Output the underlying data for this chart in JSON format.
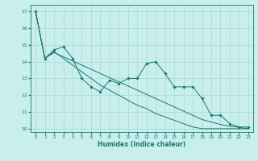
{
  "xlabel": "Humidex (Indice chaleur)",
  "ylabel": "",
  "bg_color": "#c8eeee",
  "grid_color": "#a8d8d8",
  "line_color": "#1a7a6a",
  "marker_color": "#1a7a6a",
  "xlim": [
    -0.5,
    23.5
  ],
  "ylim": [
    9.8,
    17.4
  ],
  "xticks": [
    0,
    1,
    2,
    3,
    4,
    5,
    6,
    7,
    8,
    9,
    10,
    11,
    12,
    13,
    14,
    15,
    16,
    17,
    18,
    19,
    20,
    21,
    22,
    23
  ],
  "yticks": [
    10,
    11,
    12,
    13,
    14,
    15,
    16,
    17
  ],
  "series1": [
    17.0,
    14.2,
    14.7,
    14.9,
    14.2,
    13.0,
    12.5,
    12.2,
    12.9,
    12.7,
    13.0,
    13.0,
    13.9,
    14.0,
    13.3,
    12.5,
    12.5,
    12.5,
    11.8,
    10.8,
    10.8,
    10.3,
    10.1,
    10.1
  ],
  "series2": [
    17.0,
    14.2,
    14.6,
    14.2,
    13.8,
    13.4,
    13.0,
    12.6,
    12.3,
    12.0,
    11.7,
    11.4,
    11.2,
    10.9,
    10.7,
    10.5,
    10.3,
    10.1,
    10.0,
    10.0,
    10.0,
    10.0,
    10.0,
    10.0
  ],
  "series3": [
    17.0,
    14.2,
    14.55,
    14.3,
    14.05,
    13.8,
    13.55,
    13.3,
    13.05,
    12.8,
    12.55,
    12.3,
    12.05,
    11.8,
    11.55,
    11.3,
    11.05,
    10.8,
    10.55,
    10.4,
    10.25,
    10.15,
    10.08,
    10.0
  ]
}
